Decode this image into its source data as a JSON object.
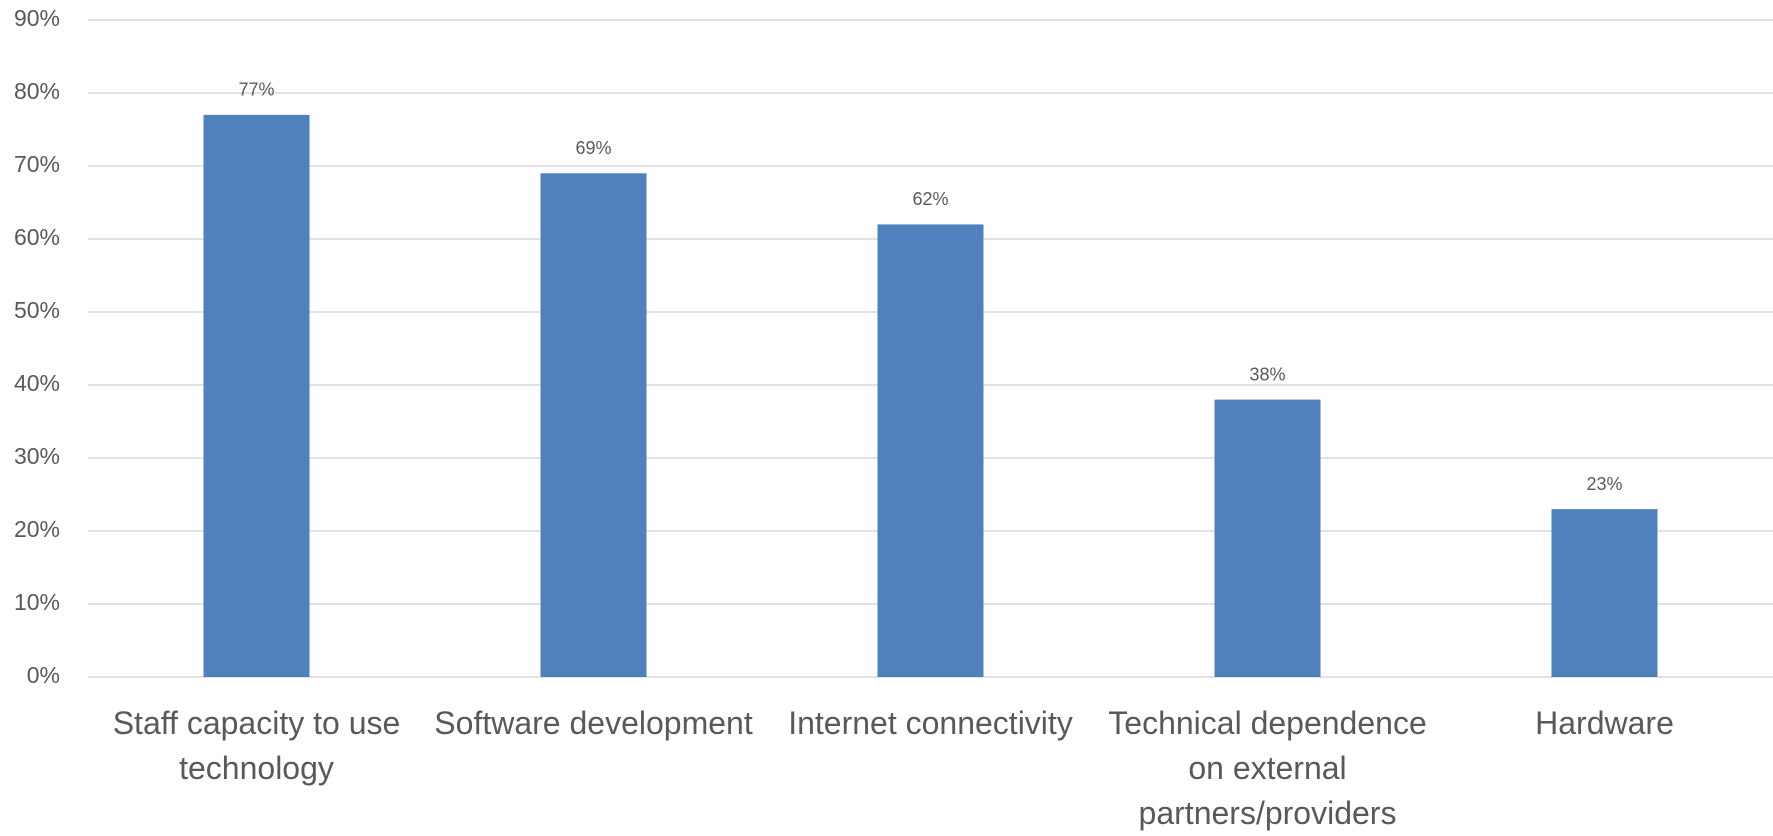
{
  "chart_data": {
    "type": "bar",
    "categories": [
      "Staff capacity to use technology",
      "Software development",
      "Internet connectivity",
      "Technical dependence on external partners/providers",
      "Hardware"
    ],
    "values": [
      77,
      69,
      62,
      38,
      23
    ],
    "value_labels": [
      "77%",
      "69%",
      "62%",
      "38%",
      "23%"
    ],
    "color": "#4f81bd",
    "ylim": [
      0,
      90
    ],
    "yticks": [
      {
        "value": 0,
        "label": "0%"
      },
      {
        "value": 10,
        "label": "10%"
      },
      {
        "value": 20,
        "label": "20%"
      },
      {
        "value": 30,
        "label": "30%"
      },
      {
        "value": 40,
        "label": "40%"
      },
      {
        "value": 50,
        "label": "50%"
      },
      {
        "value": 60,
        "label": "60%"
      },
      {
        "value": 70,
        "label": "70%"
      },
      {
        "value": 80,
        "label": "80%"
      },
      {
        "value": 90,
        "label": "90%"
      }
    ],
    "grid": true
  }
}
